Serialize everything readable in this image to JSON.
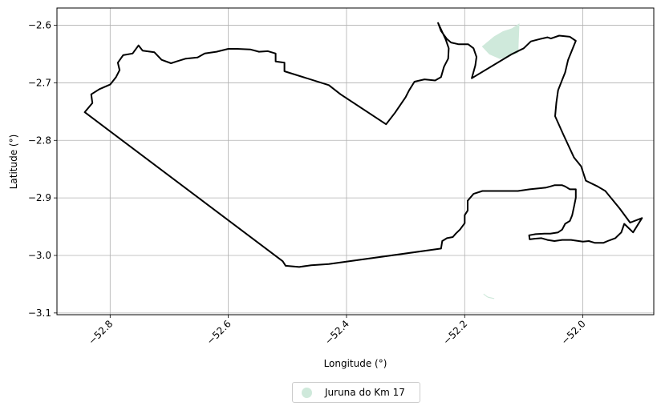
{
  "chart_data": {
    "type": "map",
    "xlabel": "Longitude (°)",
    "ylabel": "Latitude (°)",
    "xlim": [
      -52.89,
      -51.88
    ],
    "ylim": [
      -3.103,
      -2.57
    ],
    "xticks": [
      -52.8,
      -52.6,
      -52.4,
      -52.2,
      -52.0
    ],
    "xtick_labels": [
      "−52.8",
      "−52.6",
      "−52.4",
      "−52.2",
      "−52.0"
    ],
    "yticks": [
      -2.6,
      -2.7,
      -2.8,
      -2.9,
      -3.0,
      -3.1
    ],
    "ytick_labels": [
      "−2.6",
      "−2.7",
      "−2.8",
      "−2.9",
      "−3.0",
      "−3.1"
    ],
    "grid": true,
    "legend_position": "bottom-center",
    "series": [
      {
        "name": "Juruna do Km 17",
        "color": "#cfe9db",
        "polygons": [
          [
            [
              -52.17,
              -2.637
            ],
            [
              -52.15,
              -2.62
            ],
            [
              -52.135,
              -2.611
            ],
            [
              -52.12,
              -2.606
            ],
            [
              -52.108,
              -2.598
            ],
            [
              -52.11,
              -2.648
            ],
            [
              -52.14,
              -2.658
            ],
            [
              -52.158,
              -2.65
            ],
            [
              -52.17,
              -2.637
            ]
          ],
          [
            [
              -52.168,
              -3.067
            ],
            [
              -52.16,
              -3.073
            ],
            [
              -52.15,
              -3.075
            ],
            [
              -52.162,
              -3.072
            ],
            [
              -52.168,
              -3.067
            ]
          ]
        ]
      }
    ],
    "boundary": {
      "color": "#000000",
      "rings": [
        [
          [
            -52.843,
            -2.751
          ],
          [
            -52.83,
            -2.735
          ],
          [
            -52.832,
            -2.72
          ],
          [
            -52.818,
            -2.711
          ],
          [
            -52.8,
            -2.703
          ],
          [
            -52.79,
            -2.69
          ],
          [
            -52.784,
            -2.678
          ],
          [
            -52.787,
            -2.665
          ],
          [
            -52.778,
            -2.652
          ],
          [
            -52.762,
            -2.649
          ],
          [
            -52.752,
            -2.635
          ],
          [
            -52.745,
            -2.644
          ],
          [
            -52.725,
            -2.647
          ],
          [
            -52.713,
            -2.66
          ],
          [
            -52.697,
            -2.666
          ],
          [
            -52.688,
            -2.663
          ],
          [
            -52.672,
            -2.658
          ],
          [
            -52.652,
            -2.656
          ],
          [
            -52.64,
            -2.649
          ],
          [
            -52.62,
            -2.646
          ],
          [
            -52.6,
            -2.641
          ],
          [
            -52.585,
            -2.641
          ],
          [
            -52.563,
            -2.642
          ],
          [
            -52.548,
            -2.646
          ],
          [
            -52.533,
            -2.645
          ],
          [
            -52.52,
            -2.649
          ],
          [
            -52.52,
            -2.663
          ],
          [
            -52.505,
            -2.665
          ],
          [
            -52.505,
            -2.68
          ],
          [
            -52.43,
            -2.704
          ],
          [
            -52.41,
            -2.72
          ],
          [
            -52.333,
            -2.772
          ],
          [
            -52.318,
            -2.752
          ],
          [
            -52.3,
            -2.725
          ],
          [
            -52.294,
            -2.713
          ],
          [
            -52.285,
            -2.698
          ],
          [
            -52.268,
            -2.694
          ],
          [
            -52.25,
            -2.696
          ],
          [
            -52.24,
            -2.69
          ],
          [
            -52.235,
            -2.672
          ],
          [
            -52.228,
            -2.658
          ],
          [
            -52.227,
            -2.64
          ],
          [
            -52.232,
            -2.625
          ],
          [
            -52.245,
            -2.596
          ],
          [
            -52.24,
            -2.61
          ],
          [
            -52.23,
            -2.624
          ],
          [
            -52.223,
            -2.63
          ],
          [
            -52.21,
            -2.633
          ],
          [
            -52.194,
            -2.633
          ],
          [
            -52.185,
            -2.64
          ],
          [
            -52.18,
            -2.655
          ],
          [
            -52.182,
            -2.67
          ],
          [
            -52.188,
            -2.692
          ],
          [
            -52.12,
            -2.65
          ],
          [
            -52.1,
            -2.64
          ],
          [
            -52.088,
            -2.628
          ],
          [
            -52.073,
            -2.624
          ],
          [
            -52.06,
            -2.621
          ],
          [
            -52.054,
            -2.623
          ],
          [
            -52.04,
            -2.618
          ],
          [
            -52.022,
            -2.62
          ],
          [
            -52.012,
            -2.627
          ],
          [
            -52.025,
            -2.66
          ],
          [
            -52.03,
            -2.682
          ],
          [
            -52.035,
            -2.695
          ],
          [
            -52.042,
            -2.713
          ],
          [
            -52.045,
            -2.735
          ],
          [
            -52.047,
            -2.758
          ],
          [
            -52.033,
            -2.79
          ],
          [
            -52.015,
            -2.83
          ],
          [
            -52.003,
            -2.845
          ],
          [
            -51.995,
            -2.87
          ],
          [
            -51.975,
            -2.88
          ],
          [
            -51.962,
            -2.888
          ],
          [
            -51.95,
            -2.903
          ],
          [
            -51.938,
            -2.918
          ],
          [
            -51.92,
            -2.943
          ],
          [
            -51.9,
            -2.935
          ],
          [
            -51.915,
            -2.96
          ],
          [
            -51.93,
            -2.945
          ],
          [
            -51.935,
            -2.96
          ],
          [
            -51.945,
            -2.97
          ],
          [
            -51.958,
            -2.975
          ],
          [
            -51.965,
            -2.978
          ],
          [
            -51.98,
            -2.978
          ],
          [
            -51.99,
            -2.975
          ],
          [
            -52.0,
            -2.976
          ],
          [
            -52.02,
            -2.973
          ],
          [
            -52.035,
            -2.973
          ],
          [
            -52.048,
            -2.975
          ],
          [
            -52.06,
            -2.973
          ],
          [
            -52.07,
            -2.97
          ],
          [
            -52.082,
            -2.971
          ],
          [
            -52.09,
            -2.972
          ],
          [
            -52.091,
            -2.965
          ],
          [
            -52.08,
            -2.963
          ],
          [
            -52.065,
            -2.962
          ],
          [
            -52.055,
            -2.962
          ],
          [
            -52.042,
            -2.96
          ],
          [
            -52.035,
            -2.955
          ],
          [
            -52.03,
            -2.945
          ],
          [
            -52.022,
            -2.94
          ],
          [
            -52.018,
            -2.93
          ],
          [
            -52.015,
            -2.915
          ],
          [
            -52.012,
            -2.9
          ],
          [
            -52.012,
            -2.885
          ],
          [
            -52.022,
            -2.885
          ],
          [
            -52.03,
            -2.88
          ],
          [
            -52.035,
            -2.878
          ],
          [
            -52.048,
            -2.878
          ],
          [
            -52.055,
            -2.88
          ],
          [
            -52.062,
            -2.882
          ],
          [
            -52.07,
            -2.883
          ],
          [
            -52.09,
            -2.885
          ],
          [
            -52.11,
            -2.888
          ],
          [
            -52.13,
            -2.888
          ],
          [
            -52.15,
            -2.888
          ],
          [
            -52.17,
            -2.888
          ],
          [
            -52.185,
            -2.893
          ],
          [
            -52.195,
            -2.905
          ],
          [
            -52.195,
            -2.922
          ],
          [
            -52.2,
            -2.93
          ],
          [
            -52.2,
            -2.944
          ],
          [
            -52.208,
            -2.955
          ],
          [
            -52.215,
            -2.962
          ],
          [
            -52.22,
            -2.968
          ],
          [
            -52.23,
            -2.97
          ],
          [
            -52.238,
            -2.975
          ],
          [
            -52.24,
            -2.988
          ],
          [
            -52.43,
            -3.015
          ],
          [
            -52.46,
            -3.017
          ],
          [
            -52.48,
            -3.02
          ],
          [
            -52.503,
            -3.018
          ],
          [
            -52.508,
            -3.01
          ],
          [
            -52.843,
            -2.751
          ]
        ]
      ]
    }
  },
  "legend": {
    "label": "Juruna do Km 17",
    "color": "#cfe9db"
  }
}
